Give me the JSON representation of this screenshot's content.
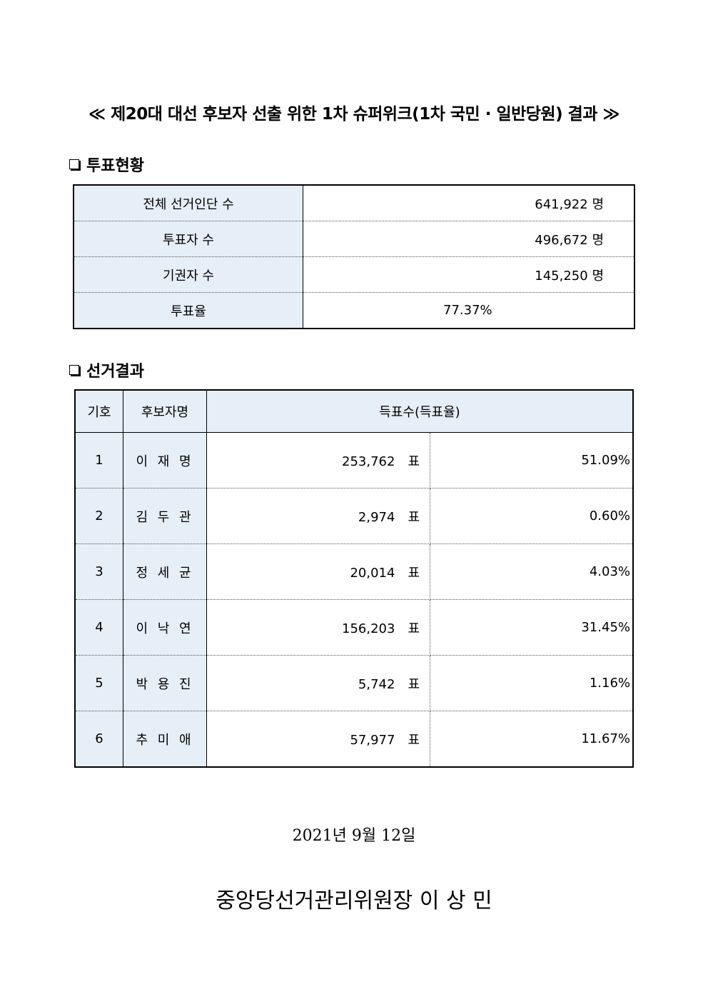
{
  "title": "≪ 제20대 대선 후보자 선출 위한 1차 슈퍼위크(1차 국민 · 일반당원) 결과 ≫",
  "section1": "투표현황",
  "turnout": [
    {
      "label": "전체 선거인단 수",
      "value": "641,922 명"
    },
    {
      "label": "투표자 수",
      "value": "496,672 명"
    },
    {
      "label": "기권자 수",
      "value": "145,250 명"
    },
    {
      "label": "투표율",
      "value": "77.37%"
    }
  ],
  "section2": "선거결과",
  "results_header": {
    "no": "기호",
    "name": "후보자명",
    "votes": "득표수(득표율)"
  },
  "vote_unit": "표",
  "results": [
    {
      "no": "1",
      "name": "이 재 명",
      "votes": "253,762",
      "pct": "51.09%"
    },
    {
      "no": "2",
      "name": "김 두 관",
      "votes": "2,974",
      "pct": "0.60%"
    },
    {
      "no": "3",
      "name": "정 세 균",
      "votes": "20,014",
      "pct": "4.03%"
    },
    {
      "no": "4",
      "name": "이 낙 연",
      "votes": "156,203",
      "pct": "31.45%"
    },
    {
      "no": "5",
      "name": "박 용 진",
      "votes": "5,742",
      "pct": "1.16%"
    },
    {
      "no": "6",
      "name": "추 미 애",
      "votes": "57,977",
      "pct": "11.67%"
    }
  ],
  "date": "2021년 9월 12일",
  "signature": "중앙당선거관리위원장 이 상 민"
}
